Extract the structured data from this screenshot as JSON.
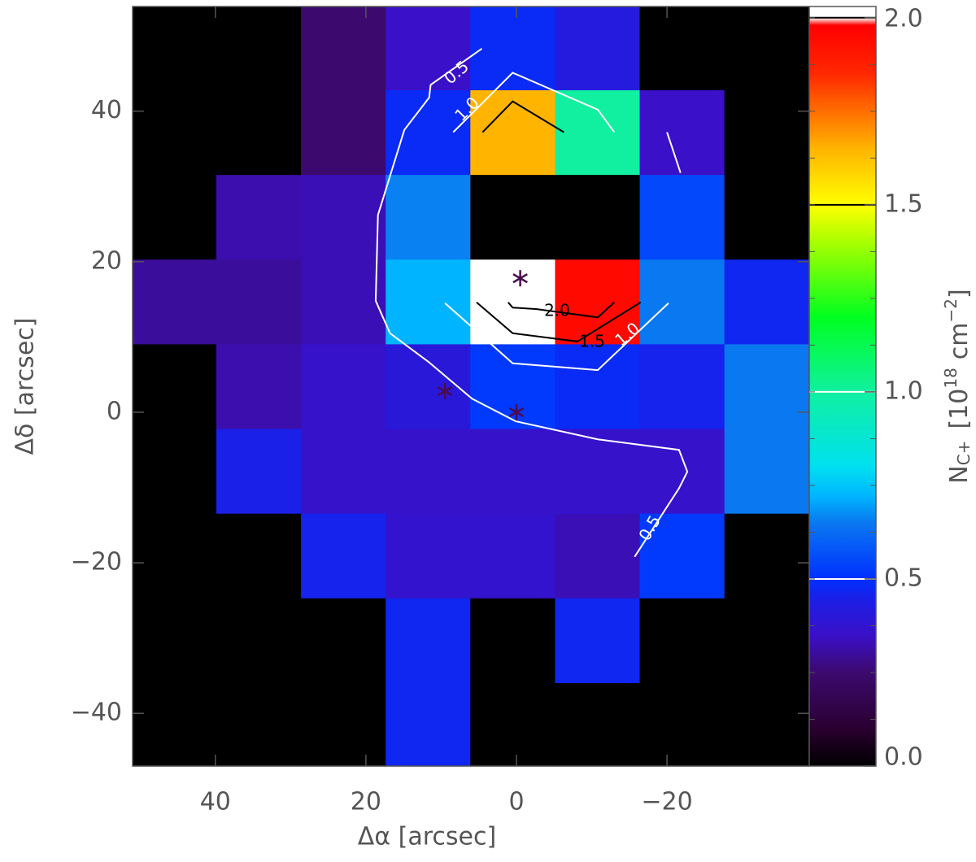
{
  "chart_data": {
    "type": "heatmap",
    "xlabel": "Δα [arcsec]",
    "ylabel": "Δδ [arcsec]",
    "xlim": [
      51.0,
      -38.9
    ],
    "ylim": [
      -47.0,
      53.9
    ],
    "xticks": [
      {
        "value": 40,
        "label": "40"
      },
      {
        "value": 20,
        "label": "20"
      },
      0,
      {
        "value": -20,
        "label": "−20"
      }
    ],
    "yticks": [
      {
        "value": 40,
        "label": "40"
      },
      {
        "value": 20,
        "label": "20"
      },
      0,
      {
        "value": -20,
        "label": "−20"
      },
      {
        "value": -40,
        "label": "−40"
      }
    ],
    "x": [
      45.5,
      34.25,
      23.0,
      11.75,
      0.5,
      -10.75,
      -22.0,
      -33.25
    ],
    "y": [
      48.4,
      37.15,
      25.9,
      14.65,
      3.4,
      -7.85,
      -19.1,
      -30.35,
      -41.6
    ],
    "z": [
      [
        0,
        0,
        0.25,
        0.35,
        0.48,
        0.42,
        0,
        0
      ],
      [
        0,
        0,
        0.25,
        0.48,
        1.65,
        1.0,
        0.35,
        0
      ],
      [
        0,
        0.32,
        0.33,
        0.66,
        0,
        0,
        0.55,
        0
      ],
      [
        0.3,
        0.3,
        0.33,
        0.72,
        2.02,
        1.95,
        0.65,
        0.47
      ],
      [
        0,
        0.32,
        0.36,
        0.4,
        0.52,
        0.48,
        0.46,
        0.65
      ],
      [
        0,
        0.45,
        0.36,
        0.36,
        0.36,
        0.36,
        0.36,
        0.65
      ],
      [
        0,
        0,
        0.46,
        0.37,
        0.37,
        0.33,
        0.52,
        0
      ],
      [
        0,
        0,
        0,
        0.47,
        0,
        0.47,
        0,
        0
      ],
      [
        0,
        0,
        0,
        0.47,
        0,
        0,
        0,
        0
      ]
    ],
    "colorscale": [
      [
        0,
        "#000000"
      ],
      [
        0.1,
        "#2a0030"
      ],
      [
        0.25,
        "#3c0a6e"
      ],
      [
        0.35,
        "#3a10c8"
      ],
      [
        0.45,
        "#1a20e8"
      ],
      [
        0.5,
        "#0030ff"
      ],
      [
        0.65,
        "#0a78f0"
      ],
      [
        0.72,
        "#00b4ff"
      ],
      [
        0.8,
        "#00e0f0"
      ],
      [
        1.0,
        "#10f0a0"
      ],
      [
        1.2,
        "#00ff20"
      ],
      [
        1.4,
        "#a8ff00"
      ],
      [
        1.5,
        "#ffff00"
      ],
      [
        1.65,
        "#ffb400"
      ],
      [
        1.85,
        "#ff2800"
      ],
      [
        1.98,
        "#ff0000"
      ],
      [
        2.0,
        "#ffffff"
      ]
    ],
    "colorbar": {
      "lim": [
        0,
        2.03
      ],
      "ticks": [
        {
          "value": 0,
          "label": "0.0"
        },
        0.5,
        {
          "value": 1,
          "label": "1.0"
        },
        1.5,
        {
          "value": 2,
          "label": "2.0"
        }
      ],
      "label": {
        "main": "N",
        "sub": "C+",
        "open": "[10",
        "sup": "18",
        "unit": "cm",
        "unit_sup": "−2",
        "close": "]"
      }
    },
    "contours": [
      {
        "level": 0.5,
        "color": "#ffffff",
        "pieces": [
          {
            "x": [
              4.6,
              11.4,
              11.6,
              14.9,
              18.4,
              18.7,
              16.8,
              11.7,
              5.9,
              0.1,
              -10.8,
              -21.6,
              -22.7,
              -21.6,
              -15.7
            ],
            "y": [
              48.3,
              43.5,
              41.8,
              37.5,
              26.2,
              14.8,
              10.5,
              6.7,
              1.8,
              -1.2,
              -3.6,
              -5.0,
              -7.9,
              -10.1,
              -19.2
            ]
          }
        ]
      },
      {
        "level": 1,
        "label": "1.0",
        "color": "#ffffff",
        "pieces": [
          {
            "x": [
              8.4,
              5.9,
              0.5,
              -10.8,
              -13.0
            ],
            "y": [
              37.2,
              39.7,
              45.1,
              40.2,
              37.2
            ]
          },
          {
            "x": [
              -20.0,
              -21.8
            ],
            "y": [
              37.2,
              31.8
            ]
          },
          {
            "x": [
              9.5,
              0.5,
              -10.8,
              -20.2
            ],
            "y": [
              14.5,
              6.5,
              5.6,
              14.5
            ]
          }
        ]
      },
      {
        "level": 1.5,
        "color": "#000000",
        "pieces": [
          {
            "x": [
              4.5,
              0.5,
              -6.3
            ],
            "y": [
              37.2,
              41.3,
              37.2
            ]
          },
          {
            "x": [
              5.3,
              0.5,
              -8.1,
              -16.5
            ],
            "y": [
              14.6,
              10.5,
              9.4,
              14.6
            ]
          }
        ]
      },
      {
        "level": 2,
        "label": "2.0",
        "color": "#000000",
        "pieces": [
          {
            "x": [
              1.1,
              0.5,
              -2.7,
              -10.8,
              -13.0
            ],
            "y": [
              14.6,
              13.9,
              13.7,
              12.6,
              14.6
            ]
          }
        ]
      }
    ],
    "markers": {
      "color": "#4a0a50",
      "x": [
        0,
        9.5,
        -0.5
      ],
      "y": [
        0,
        2.8,
        17.8
      ]
    }
  }
}
